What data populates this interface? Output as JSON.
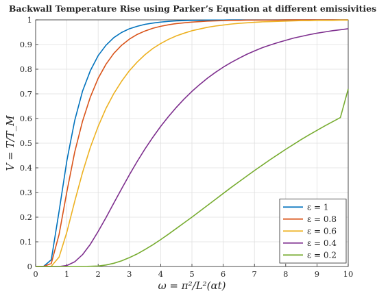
{
  "chart_data": {
    "type": "line",
    "title": "Backwall Temperature Rise using Parker’s Equation at different emissivities",
    "xlabel": "ω = π²/L²(αt)",
    "ylabel": "V = T/T_M",
    "xlim": [
      0,
      10
    ],
    "ylim": [
      0,
      1
    ],
    "xticks": [
      "0",
      "1",
      "2",
      "3",
      "4",
      "5",
      "6",
      "7",
      "8",
      "9",
      "10"
    ],
    "yticks": [
      "0",
      "0.1",
      "0.2",
      "0.3",
      "0.4",
      "0.5",
      "0.6",
      "0.7",
      "0.8",
      "0.9",
      "1"
    ],
    "grid": true,
    "legend_position": "bottom-right",
    "x": [
      0.0,
      0.25,
      0.5,
      0.75,
      1.0,
      1.25,
      1.5,
      1.75,
      2.0,
      2.25,
      2.5,
      2.75,
      3.0,
      3.25,
      3.5,
      3.75,
      4.0,
      4.25,
      4.5,
      4.75,
      5.0,
      5.25,
      5.5,
      5.75,
      6.0,
      6.25,
      6.5,
      6.75,
      7.0,
      7.25,
      7.5,
      7.75,
      8.0,
      8.25,
      8.5,
      8.75,
      9.0,
      9.25,
      9.5,
      9.75,
      10.0
    ],
    "series": [
      {
        "name": "ε = 1",
        "color": "#0072BD",
        "values": [
          0.0,
          0.0,
          0.027,
          0.224,
          0.43,
          0.592,
          0.711,
          0.794,
          0.855,
          0.897,
          0.928,
          0.949,
          0.964,
          0.974,
          0.982,
          0.987,
          0.991,
          0.994,
          0.996,
          0.997,
          0.998,
          0.998,
          0.999,
          0.999,
          0.999,
          1.0,
          1.0,
          1.0,
          1.0,
          1.0,
          1.0,
          1.0,
          1.0,
          1.0,
          1.0,
          1.0,
          1.0,
          1.0,
          1.0,
          1.0,
          1.0
        ]
      },
      {
        "name": "ε = 0.8",
        "color": "#D95319",
        "values": [
          0.0,
          0.0,
          0.012,
          0.13,
          0.304,
          0.464,
          0.589,
          0.687,
          0.763,
          0.82,
          0.864,
          0.897,
          0.922,
          0.941,
          0.955,
          0.966,
          0.974,
          0.98,
          0.985,
          0.988,
          0.991,
          0.993,
          0.995,
          0.996,
          0.997,
          0.998,
          0.998,
          0.999,
          0.999,
          0.999,
          0.999,
          0.999,
          1.0,
          1.0,
          1.0,
          1.0,
          1.0,
          1.0,
          1.0,
          1.0,
          1.0
        ]
      },
      {
        "name": "ε = 0.6",
        "color": "#EDB120",
        "values": [
          0.0,
          0.0,
          0.001,
          0.038,
          0.14,
          0.264,
          0.381,
          0.483,
          0.568,
          0.641,
          0.701,
          0.751,
          0.794,
          0.829,
          0.859,
          0.884,
          0.904,
          0.921,
          0.935,
          0.946,
          0.956,
          0.963,
          0.97,
          0.975,
          0.979,
          0.983,
          0.986,
          0.988,
          0.99,
          0.992,
          0.993,
          0.994,
          0.995,
          0.996,
          0.997,
          0.997,
          0.998,
          0.998,
          0.998,
          0.999,
          0.999
        ]
      },
      {
        "name": "ε = 0.4",
        "color": "#7E2F8E",
        "values": [
          0.0,
          0.0,
          0.0,
          0.0,
          0.004,
          0.019,
          0.048,
          0.09,
          0.142,
          0.198,
          0.257,
          0.315,
          0.372,
          0.426,
          0.477,
          0.524,
          0.568,
          0.608,
          0.645,
          0.679,
          0.71,
          0.738,
          0.764,
          0.787,
          0.808,
          0.827,
          0.844,
          0.86,
          0.874,
          0.887,
          0.898,
          0.908,
          0.917,
          0.926,
          0.933,
          0.94,
          0.946,
          0.951,
          0.956,
          0.96,
          0.964
        ]
      },
      {
        "name": "ε = 0.2",
        "color": "#77AC30",
        "values": [
          0.0,
          0.0,
          0.0,
          0.0,
          0.0,
          0.0,
          0.0,
          0.001,
          0.002,
          0.006,
          0.013,
          0.023,
          0.036,
          0.051,
          0.069,
          0.088,
          0.109,
          0.131,
          0.154,
          0.177,
          0.2,
          0.224,
          0.248,
          0.272,
          0.296,
          0.32,
          0.343,
          0.366,
          0.389,
          0.411,
          0.433,
          0.454,
          0.475,
          0.495,
          0.515,
          0.534,
          0.552,
          0.57,
          0.587,
          0.604,
          0.72
        ]
      }
    ]
  }
}
